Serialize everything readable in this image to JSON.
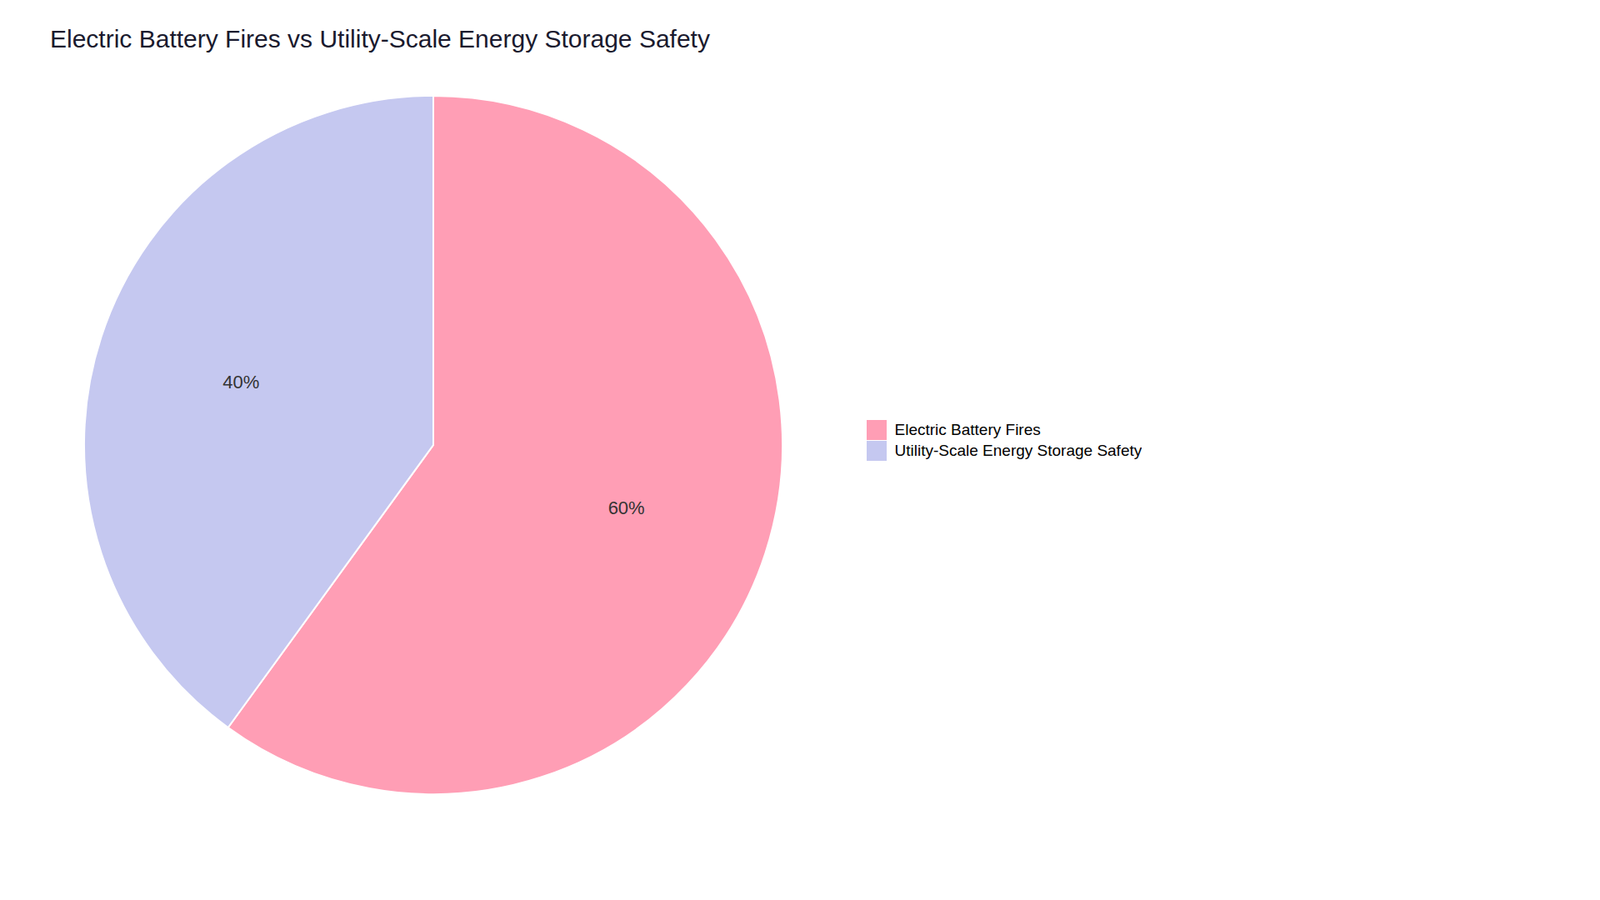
{
  "chart_data": {
    "type": "pie",
    "title": "Electric Battery Fires vs Utility-Scale Energy Storage Safety",
    "categories": [
      "Electric Battery Fires",
      "Utility-Scale Energy Storage Safety"
    ],
    "values": [
      60,
      40
    ],
    "value_labels": [
      "60%",
      "40%"
    ],
    "colors": [
      "#FF9EB5",
      "#C5C8F0"
    ],
    "data_labels": true,
    "legend": "right"
  }
}
